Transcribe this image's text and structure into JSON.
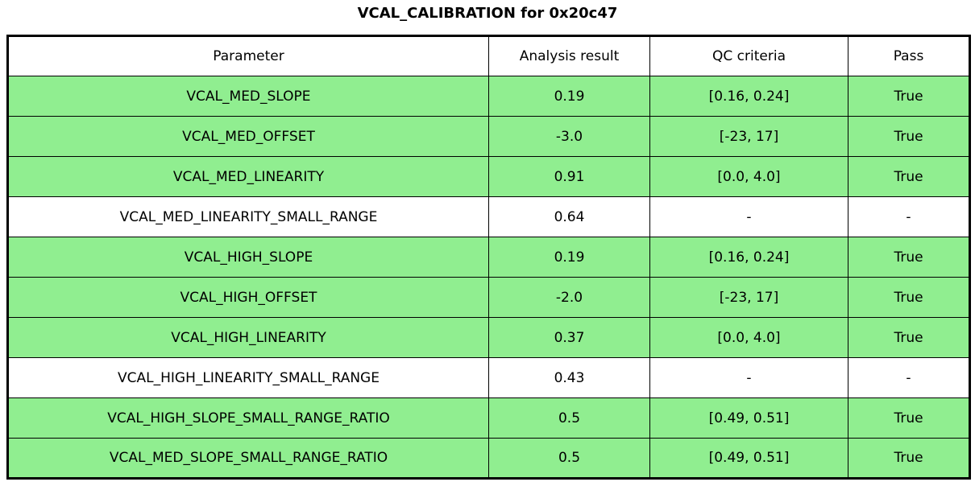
{
  "figure": {
    "title": "VCAL_CALIBRATION for 0x20c47"
  },
  "colors": {
    "pass_row_bg": "#90ee90",
    "neutral_row_bg": "#ffffff",
    "border": "#000000",
    "text": "#000000"
  },
  "table": {
    "headers": [
      "Parameter",
      "Analysis result",
      "QC criteria",
      "Pass"
    ],
    "rows": [
      {
        "parameter": "VCAL_MED_SLOPE",
        "result": "0.19",
        "criteria": "[0.16, 0.24]",
        "pass": "True",
        "highlight": true
      },
      {
        "parameter": "VCAL_MED_OFFSET",
        "result": "-3.0",
        "criteria": "[-23, 17]",
        "pass": "True",
        "highlight": true
      },
      {
        "parameter": "VCAL_MED_LINEARITY",
        "result": "0.91",
        "criteria": "[0.0, 4.0]",
        "pass": "True",
        "highlight": true
      },
      {
        "parameter": "VCAL_MED_LINEARITY_SMALL_RANGE",
        "result": "0.64",
        "criteria": "-",
        "pass": "-",
        "highlight": false
      },
      {
        "parameter": "VCAL_HIGH_SLOPE",
        "result": "0.19",
        "criteria": "[0.16, 0.24]",
        "pass": "True",
        "highlight": true
      },
      {
        "parameter": "VCAL_HIGH_OFFSET",
        "result": "-2.0",
        "criteria": "[-23, 17]",
        "pass": "True",
        "highlight": true
      },
      {
        "parameter": "VCAL_HIGH_LINEARITY",
        "result": "0.37",
        "criteria": "[0.0, 4.0]",
        "pass": "True",
        "highlight": true
      },
      {
        "parameter": "VCAL_HIGH_LINEARITY_SMALL_RANGE",
        "result": "0.43",
        "criteria": "-",
        "pass": "-",
        "highlight": false
      },
      {
        "parameter": "VCAL_HIGH_SLOPE_SMALL_RANGE_RATIO",
        "result": "0.5",
        "criteria": "[0.49, 0.51]",
        "pass": "True",
        "highlight": true
      },
      {
        "parameter": "VCAL_MED_SLOPE_SMALL_RANGE_RATIO",
        "result": "0.5",
        "criteria": "[0.49, 0.51]",
        "pass": "True",
        "highlight": true
      }
    ]
  },
  "chart_data": {
    "type": "table",
    "title": "VCAL_CALIBRATION for 0x20c47",
    "columns": [
      "Parameter",
      "Analysis result",
      "QC criteria",
      "Pass"
    ],
    "rows": [
      [
        "VCAL_MED_SLOPE",
        "0.19",
        "[0.16, 0.24]",
        "True"
      ],
      [
        "VCAL_MED_OFFSET",
        "-3.0",
        "[-23, 17]",
        "True"
      ],
      [
        "VCAL_MED_LINEARITY",
        "0.91",
        "[0.0, 4.0]",
        "True"
      ],
      [
        "VCAL_MED_LINEARITY_SMALL_RANGE",
        "0.64",
        "-",
        "-"
      ],
      [
        "VCAL_HIGH_SLOPE",
        "0.19",
        "[0.16, 0.24]",
        "True"
      ],
      [
        "VCAL_HIGH_OFFSET",
        "-2.0",
        "[-23, 17]",
        "True"
      ],
      [
        "VCAL_HIGH_LINEARITY",
        "0.37",
        "[0.0, 4.0]",
        "True"
      ],
      [
        "VCAL_HIGH_LINEARITY_SMALL_RANGE",
        "0.43",
        "-",
        "-"
      ],
      [
        "VCAL_HIGH_SLOPE_SMALL_RANGE_RATIO",
        "0.5",
        "[0.49, 0.51]",
        "True"
      ],
      [
        "VCAL_MED_SLOPE_SMALL_RANGE_RATIO",
        "0.5",
        "[0.49, 0.51]",
        "True"
      ]
    ],
    "row_highlighted_green": [
      true,
      true,
      true,
      false,
      true,
      true,
      true,
      false,
      true,
      true
    ],
    "layout": {
      "title_position": "top-center",
      "grid": "all-cell-borders",
      "pass_color": "#90ee90"
    }
  }
}
